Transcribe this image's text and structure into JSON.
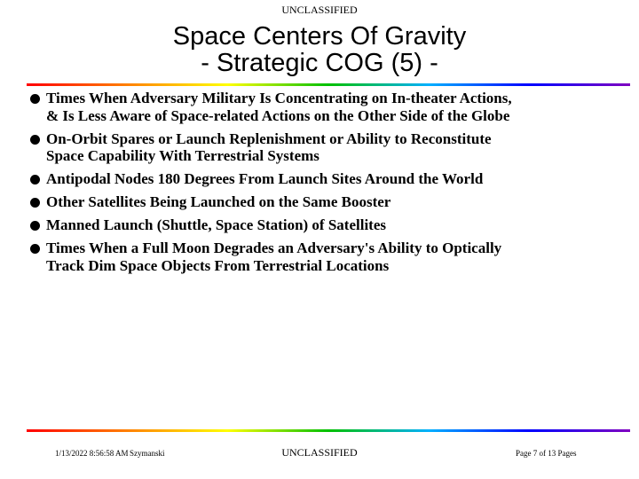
{
  "classification_top": "UNCLASSIFIED",
  "title": {
    "line1": "Space Centers Of Gravity",
    "line2": "- Strategic COG (5) -"
  },
  "rule_colors": [
    "#ff0000",
    "#ff8000",
    "#ffff00",
    "#00c000",
    "#00b0ff",
    "#0000ff",
    "#8000c0"
  ],
  "bullets": [
    {
      "line1": "Times When Adversary Military Is Concentrating on In-theater Actions,",
      "line2": "& Is Less Aware of Space-related Actions on the Other Side of the Globe"
    },
    {
      "line1": "On-Orbit Spares or Launch Replenishment or Ability to Reconstitute",
      "line2": "Space Capability With Terrestrial Systems"
    },
    {
      "line1": "Antipodal Nodes 180 Degrees From Launch Sites Around the World"
    },
    {
      "line1": "Other Satellites Being Launched on the Same Booster"
    },
    {
      "line1": "Manned Launch (Shuttle, Space Station) of Satellites"
    },
    {
      "line1": "Times When a Full Moon Degrades an Adversary's Ability to Optically",
      "line2": "Track Dim Space Objects From Terrestrial Locations"
    }
  ],
  "footer": {
    "date": "1/13/2022 8:56:58 AM",
    "author": "Szymanski",
    "classification": "UNCLASSIFIED",
    "page": "Page 7 of 13 Pages"
  }
}
